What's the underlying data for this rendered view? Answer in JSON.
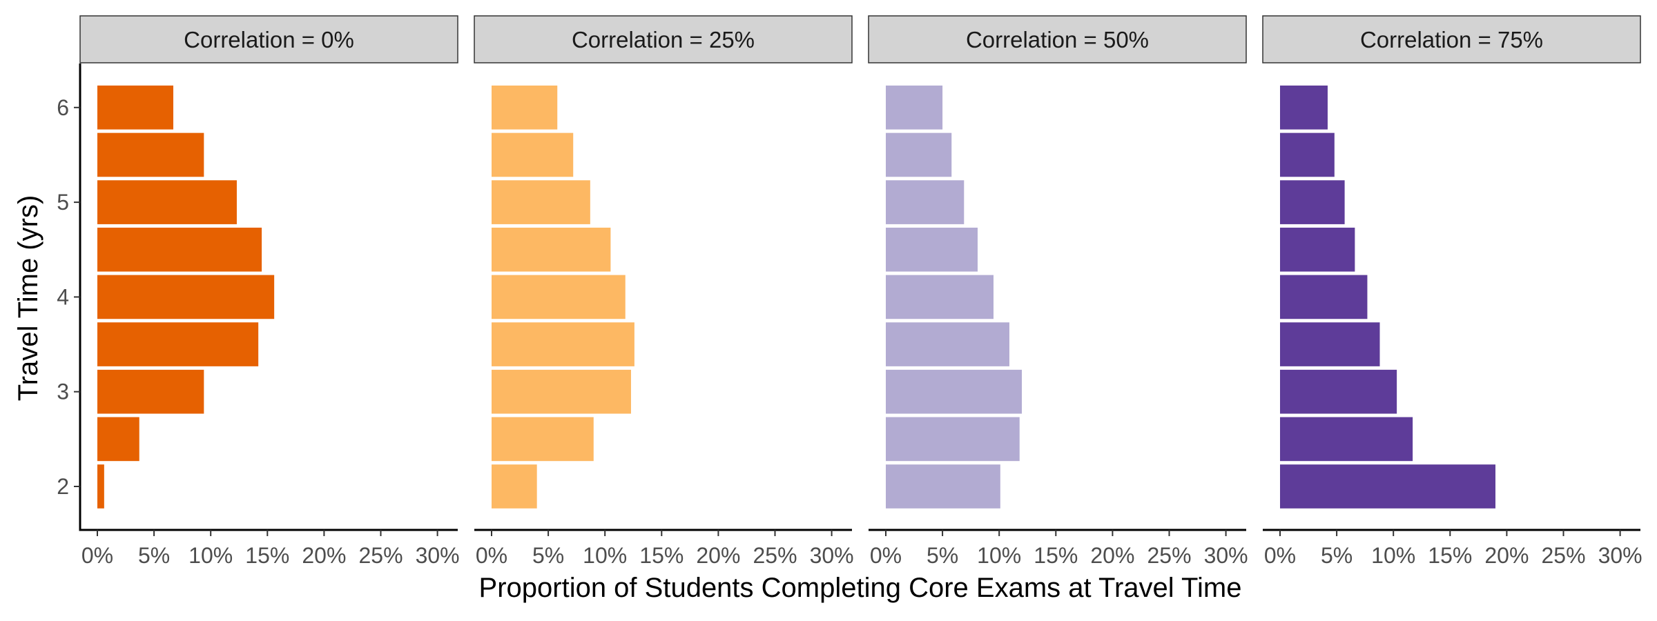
{
  "chart_data": {
    "type": "bar",
    "orientation": "horizontal",
    "xlabel": "Proportion of Students Completing Core Exams at Travel Time",
    "ylabel": "Travel Time (yrs)",
    "xlim": [
      0,
      30
    ],
    "x_ticks": [
      0,
      5,
      10,
      15,
      20,
      25,
      30
    ],
    "x_tick_labels": [
      "0%",
      "5%",
      "10%",
      "15%",
      "20%",
      "25%",
      "30%"
    ],
    "ylim": [
      1.6,
      6.5
    ],
    "y_ticks": [
      2,
      3,
      4,
      5,
      6
    ],
    "y_tick_labels": [
      "2",
      "3",
      "4",
      "5",
      "6"
    ],
    "bin_width": 0.5,
    "categories": [
      2,
      2.5,
      3,
      3.5,
      4,
      4.5,
      5,
      5.5,
      6
    ],
    "grid": false,
    "facets": [
      {
        "label": "Correlation = 0%",
        "color": "#e66101",
        "values": [
          0.6,
          3.7,
          9.4,
          14.2,
          15.6,
          14.5,
          12.3,
          9.4,
          6.7
        ]
      },
      {
        "label": "Correlation = 25%",
        "color": "#fdb863",
        "values": [
          4.0,
          9.0,
          12.3,
          12.6,
          11.8,
          10.5,
          8.7,
          7.2,
          5.8
        ]
      },
      {
        "label": "Correlation = 50%",
        "color": "#b2abd2",
        "values": [
          10.1,
          11.8,
          12.0,
          10.9,
          9.5,
          8.1,
          6.9,
          5.8,
          5.0
        ]
      },
      {
        "label": "Correlation = 75%",
        "color": "#5e3c99",
        "values": [
          19.0,
          11.7,
          10.3,
          8.8,
          7.7,
          6.6,
          5.7,
          4.8,
          4.2
        ]
      }
    ]
  }
}
